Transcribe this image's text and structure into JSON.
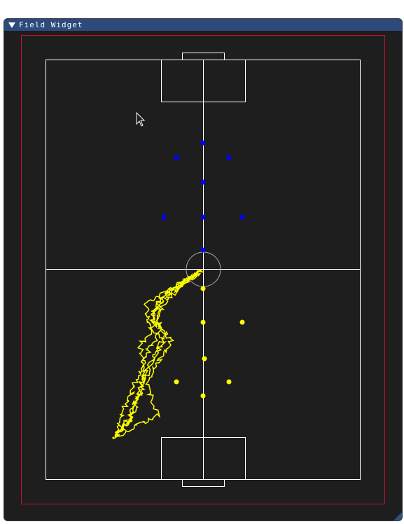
{
  "window": {
    "title": "Field Widget"
  },
  "colors": {
    "titlebar": "#2c4a7c",
    "window_bg": "#1e1e1e",
    "boundary": "#c8102e",
    "lines": "#ffffff",
    "center_circle": "#aaaaaa",
    "blue_team": "#0000ff",
    "yellow_team": "#ffff00",
    "trajectory": "#ffff00"
  },
  "icons": {
    "collapse": "triangle-down-icon",
    "cursor": "mouse-pointer-icon",
    "resize": "resize-grip-icon"
  }
}
